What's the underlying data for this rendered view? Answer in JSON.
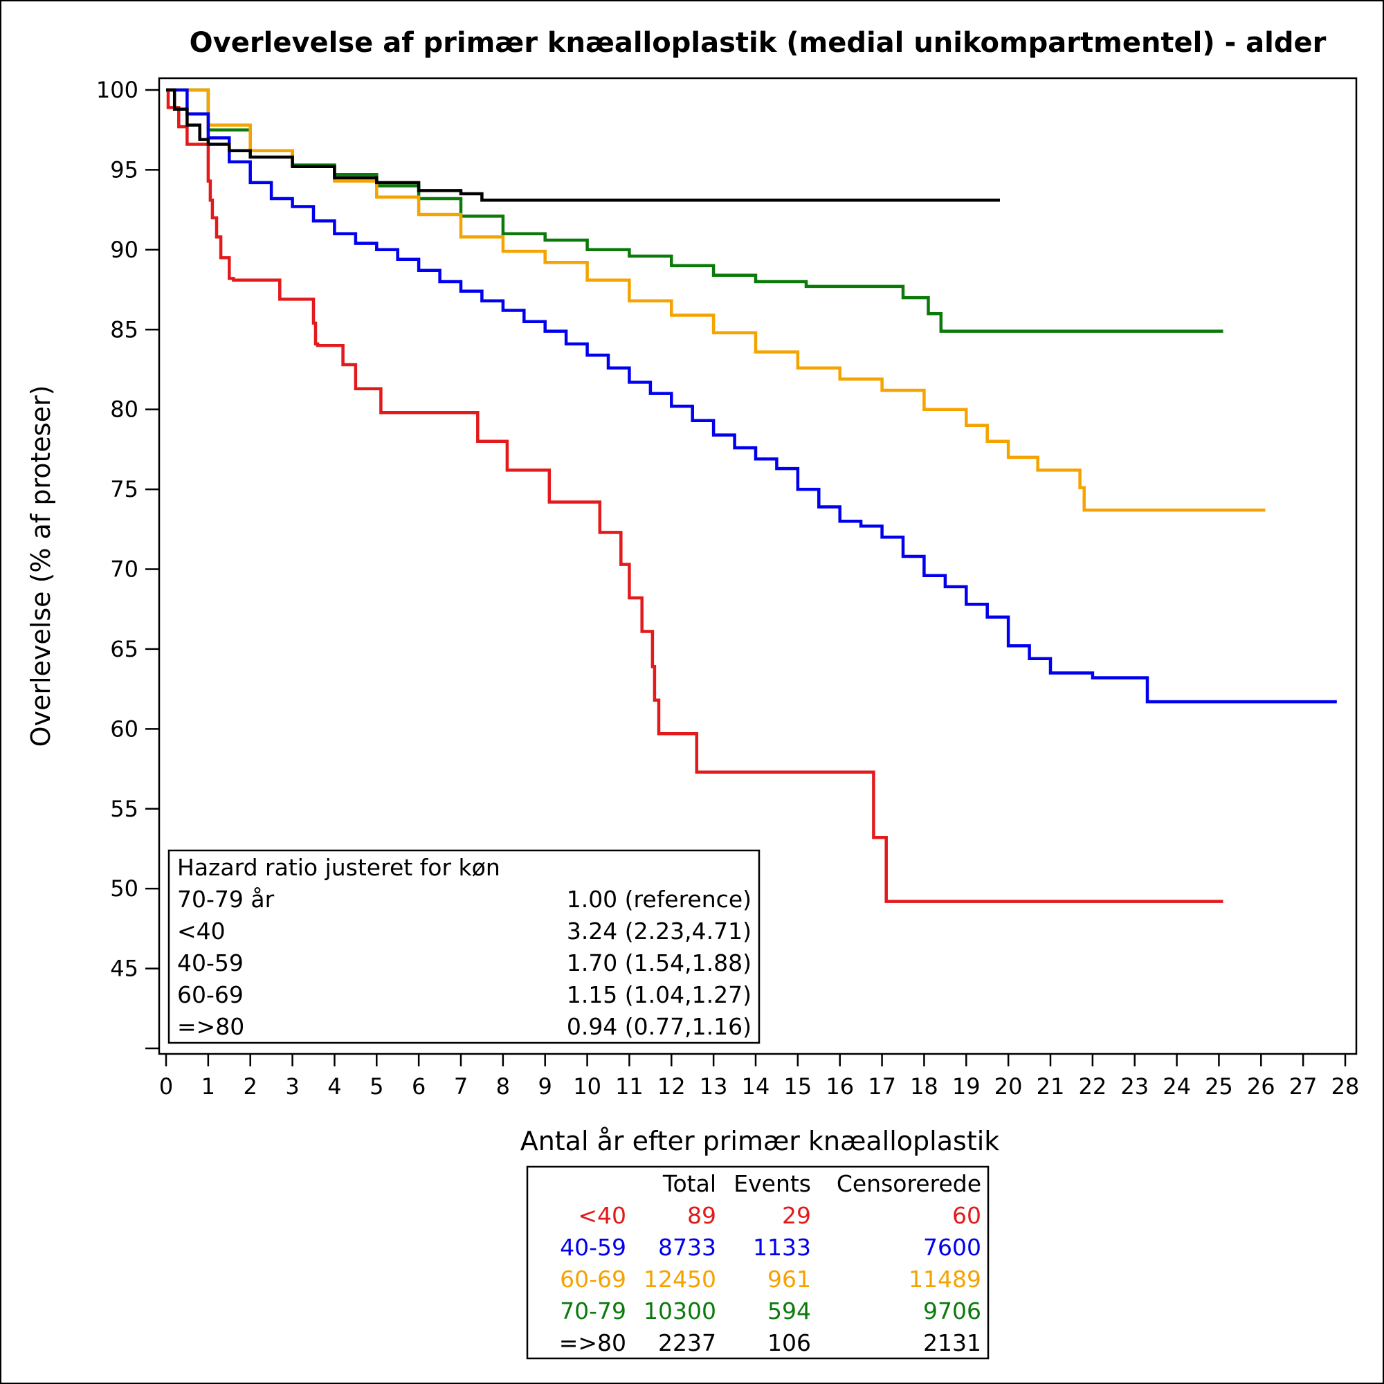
{
  "chart_data": {
    "type": "line",
    "title": "Overlevelse af primær knæalloplastik (medial unikompartmentel) - alder",
    "xlabel": "Antal år efter primær knæalloplastik",
    "ylabel": "Overlevelse (% af proteser)",
    "xlim": [
      0,
      28
    ],
    "ylim": [
      40,
      100
    ],
    "xticks": [
      "0",
      "1",
      "2",
      "3",
      "4",
      "5",
      "6",
      "7",
      "8",
      "9",
      "10",
      "11",
      "12",
      "13",
      "14",
      "15",
      "16",
      "17",
      "18",
      "19",
      "20",
      "21",
      "22",
      "23",
      "24",
      "25",
      "26",
      "27",
      "28"
    ],
    "yticks": [
      "45",
      "50",
      "55",
      "60",
      "65",
      "70",
      "75",
      "80",
      "85",
      "90",
      "95",
      "100"
    ],
    "grid": false,
    "step": true,
    "series": [
      {
        "name": "<40",
        "color": "#e31a1c",
        "x": [
          0,
          0.05,
          0.3,
          0.5,
          1.0,
          1.05,
          1.1,
          1.2,
          1.3,
          1.5,
          1.6,
          2.7,
          3.5,
          3.55,
          3.6,
          4.2,
          4.5,
          5.1,
          7.4,
          8.1,
          9.1,
          10.3,
          10.8,
          11.0,
          11.3,
          11.55,
          11.6,
          11.7,
          12.6,
          16.8,
          17.1,
          25.1
        ],
        "y": [
          100,
          98.9,
          97.7,
          96.6,
          94.3,
          93.1,
          92.0,
          90.8,
          89.5,
          88.2,
          88.1,
          86.9,
          85.4,
          84.1,
          84.0,
          82.8,
          81.3,
          79.8,
          78.0,
          76.2,
          74.2,
          72.3,
          70.3,
          68.2,
          66.1,
          63.9,
          61.8,
          59.7,
          57.3,
          53.2,
          49.2,
          49.2
        ]
      },
      {
        "name": "40-59",
        "color": "#0000ee",
        "x": [
          0,
          0.5,
          1.0,
          1.5,
          2.0,
          2.5,
          3.0,
          3.5,
          4.0,
          4.5,
          5.0,
          5.5,
          6.0,
          6.5,
          7.0,
          7.5,
          8.0,
          8.5,
          9.0,
          9.5,
          10.0,
          10.5,
          11.0,
          11.5,
          12.0,
          12.5,
          13.0,
          13.5,
          14.0,
          14.5,
          15.0,
          15.5,
          16.0,
          16.5,
          17.0,
          17.5,
          18.0,
          18.5,
          19.0,
          19.5,
          20.0,
          20.5,
          21.0,
          22.0,
          23.2,
          23.3,
          27.8
        ],
        "y": [
          100,
          98.5,
          97.0,
          95.5,
          94.2,
          93.2,
          92.7,
          91.8,
          91.0,
          90.4,
          90.0,
          89.4,
          88.7,
          88.0,
          87.4,
          86.8,
          86.2,
          85.5,
          84.9,
          84.1,
          83.4,
          82.6,
          81.7,
          81.0,
          80.2,
          79.3,
          78.4,
          77.6,
          76.9,
          76.3,
          75.0,
          73.9,
          73.0,
          72.7,
          72.0,
          70.8,
          69.6,
          68.9,
          67.8,
          67.0,
          65.2,
          64.4,
          63.5,
          63.2,
          63.2,
          61.7,
          61.7
        ]
      },
      {
        "name": "60-69",
        "color": "#f5a300",
        "x": [
          0,
          1.0,
          2.0,
          3.0,
          4.0,
          5.0,
          6.0,
          7.0,
          8.0,
          9.0,
          10.0,
          11.0,
          12.0,
          13.0,
          14.0,
          15.0,
          16.0,
          17.0,
          18.0,
          19.0,
          19.5,
          20.0,
          20.7,
          21.7,
          21.8,
          26.1
        ],
        "y": [
          100,
          97.8,
          96.2,
          95.2,
          94.3,
          93.3,
          92.2,
          90.8,
          89.9,
          89.2,
          88.1,
          86.8,
          85.9,
          84.8,
          83.6,
          82.6,
          81.9,
          81.2,
          80.0,
          79.0,
          78.0,
          77.0,
          76.2,
          75.1,
          73.7,
          73.7
        ]
      },
      {
        "name": "70-79",
        "color": "#0b7a0b",
        "x": [
          0,
          1.0,
          2.0,
          3.0,
          4.0,
          5.0,
          6.0,
          7.0,
          8.0,
          9.0,
          10.0,
          11.0,
          12.0,
          13.0,
          14.0,
          15.0,
          15.2,
          17.5,
          18.1,
          18.4,
          25.1
        ],
        "y": [
          100,
          97.5,
          96.2,
          95.3,
          94.7,
          94.0,
          93.2,
          92.1,
          91.0,
          90.6,
          90.0,
          89.6,
          89.0,
          88.4,
          88.0,
          88.0,
          87.7,
          87.0,
          86.0,
          84.9,
          84.9
        ]
      },
      {
        "name": "=>80",
        "color": "#000000",
        "x": [
          0,
          0.2,
          0.5,
          0.8,
          1.0,
          1.5,
          2.0,
          3.0,
          4.0,
          5.0,
          6.0,
          7.0,
          7.5,
          19.8
        ],
        "y": [
          100,
          98.8,
          97.8,
          96.9,
          96.6,
          96.2,
          95.8,
          95.2,
          94.5,
          94.2,
          93.7,
          93.5,
          93.1,
          93.1
        ]
      }
    ]
  },
  "inset": {
    "title": "Hazard ratio justeret for køn",
    "rows": [
      {
        "label": "70-79 år",
        "value": "1.00 (reference)"
      },
      {
        "label": "<40",
        "value": "3.24 (2.23,4.71)"
      },
      {
        "label": "40-59",
        "value": "1.70 (1.54,1.88)"
      },
      {
        "label": "60-69",
        "value": "1.15 (1.04,1.27)"
      },
      {
        "label": "=>80",
        "value": "0.94 (0.77,1.16)"
      }
    ]
  },
  "table": {
    "headers": [
      "Total",
      "Events",
      "Censorerede"
    ],
    "rows": [
      {
        "group": "<40",
        "total": "89",
        "events": "29",
        "censored": "60",
        "color": "#e31a1c"
      },
      {
        "group": "40-59",
        "total": "8733",
        "events": "1133",
        "censored": "7600",
        "color": "#0000ee"
      },
      {
        "group": "60-69",
        "total": "12450",
        "events": "961",
        "censored": "11489",
        "color": "#f5a300"
      },
      {
        "group": "70-79",
        "total": "10300",
        "events": "594",
        "censored": "9706",
        "color": "#0b7a0b"
      },
      {
        "group": "=>80",
        "total": "2237",
        "events": "106",
        "censored": "2131",
        "color": "#000000"
      }
    ]
  }
}
